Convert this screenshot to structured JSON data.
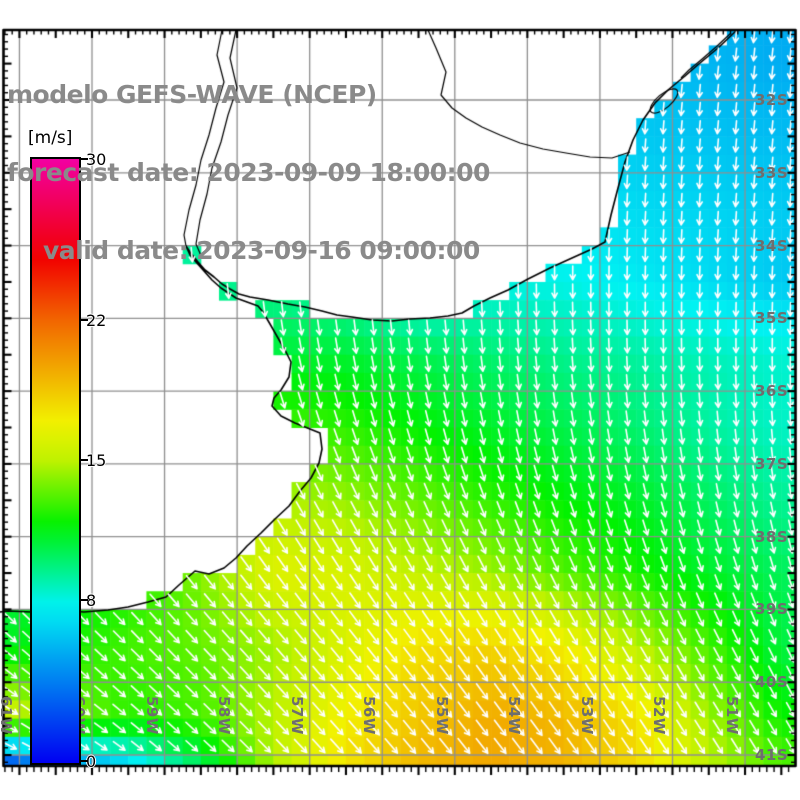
{
  "title": {
    "line1": "modelo GEFS-WAVE (NCEP)",
    "line2": "forecast date: 2023-09-09 18:00:00",
    "line3": "valid date: 2023-09-16 09:00:00",
    "color": "#8a8a8a"
  },
  "colorbar": {
    "unit_label": "[m/s]",
    "tick_labels": [
      "30",
      "22",
      "15",
      "8",
      "0"
    ],
    "tick_values": [
      30,
      22,
      15,
      8,
      0
    ],
    "min": 0,
    "max": 30,
    "hue_anchors": [
      [
        0,
        240
      ],
      [
        8,
        178
      ],
      [
        15,
        73
      ],
      [
        22,
        25
      ],
      [
        30,
        -40
      ]
    ]
  },
  "axes": {
    "lat_labels": [
      "32S",
      "33S",
      "34S",
      "35S",
      "36S",
      "37S",
      "38S",
      "39S",
      "40S",
      "41S"
    ],
    "lat_values": [
      -32,
      -33,
      -34,
      -35,
      -36,
      -37,
      -38,
      -39,
      -40,
      -41
    ],
    "lon_labels": [
      "61W",
      "60W",
      "59W",
      "58W",
      "57W",
      "56W",
      "55W",
      "54W",
      "53W",
      "52W",
      "51W"
    ],
    "lon_values": [
      -61,
      -60,
      -59,
      -58,
      -57,
      -56,
      -55,
      -54,
      -53,
      -52,
      -51
    ],
    "label_color": "#6e6e6e",
    "grid_color": "#8f8f8f"
  },
  "map_style": {
    "land_color": "#ffffff",
    "coast_color": "#000000",
    "arrow_color": "#ffffff",
    "frame_color": "#000000"
  },
  "chart_data": {
    "type": "heatmap",
    "variable": "wind speed",
    "units": "m/s",
    "lon_range": [
      -61.3,
      -50.3
    ],
    "lat_range": [
      -41.2,
      -31.0
    ],
    "grid_lons": [
      -61.5,
      -60.5,
      -59.5,
      -58.5,
      -57.5,
      -56.5,
      -55.5,
      -54.5,
      -53.5,
      -52.5,
      -51.5,
      -50.5
    ],
    "grid_lats": [
      -31.5,
      -32.5,
      -33.5,
      -34.5,
      -35.5,
      -36.5,
      -37.5,
      -38.5,
      -39.5,
      -40.5,
      -41.0,
      -41.5
    ],
    "speed_grid": [
      [
        8.0,
        8.0,
        8.0,
        8.0,
        8.0,
        8.0,
        7.5,
        7.0,
        6.5,
        6.2,
        5.8,
        5.5
      ],
      [
        8.5,
        8.5,
        8.5,
        8.5,
        8.5,
        8.0,
        7.5,
        7.2,
        6.8,
        6.4,
        6.2,
        6.0
      ],
      [
        9.0,
        9.0,
        9.0,
        9.0,
        9.0,
        8.5,
        8.0,
        7.6,
        7.3,
        7.0,
        6.8,
        6.5
      ],
      [
        9.0,
        9.0,
        9.2,
        9.5,
        9.2,
        8.5,
        7.2,
        8.0,
        8.0,
        7.5,
        7.0,
        6.4
      ],
      [
        10.0,
        10.0,
        10.2,
        10.5,
        11.0,
        11.0,
        10.5,
        10.0,
        9.5,
        9.2,
        8.8,
        8.4
      ],
      [
        10.5,
        11.0,
        11.5,
        12.3,
        13.0,
        12.6,
        11.8,
        11.2,
        10.6,
        10.0,
        9.2,
        8.6
      ],
      [
        11.0,
        11.5,
        12.0,
        13.5,
        14.8,
        14.3,
        13.5,
        12.6,
        11.8,
        11.2,
        10.2,
        9.4
      ],
      [
        10.5,
        11.0,
        12.0,
        14.0,
        16.3,
        16.0,
        15.2,
        14.5,
        13.2,
        12.2,
        11.2,
        10.4
      ],
      [
        11.0,
        12.0,
        13.0,
        13.5,
        14.5,
        16.0,
        17.5,
        18.0,
        17.0,
        15.0,
        13.0,
        10.8
      ],
      [
        16.5,
        14.5,
        12.5,
        13.0,
        15.0,
        17.0,
        18.5,
        19.5,
        19.0,
        17.5,
        14.5,
        12.0
      ],
      [
        3.0,
        6.0,
        8.0,
        11.0,
        15.0,
        17.5,
        19.0,
        19.6,
        19.2,
        17.8,
        15.0,
        13.0
      ],
      [
        0.5,
        2.0,
        5.0,
        9.5,
        14.0,
        17.0,
        18.8,
        19.5,
        19.2,
        17.8,
        15.0,
        13.2
      ]
    ],
    "direction_to_grid_deg": [
      [
        183,
        183,
        183,
        183,
        183,
        184,
        184,
        185,
        185,
        186,
        186,
        186
      ],
      [
        180,
        180,
        180,
        181,
        181,
        182,
        182,
        183,
        184,
        184,
        185,
        185
      ],
      [
        175,
        176,
        177,
        178,
        179,
        180,
        180,
        181,
        182,
        183,
        184,
        184
      ],
      [
        168,
        170,
        172,
        174,
        176,
        177,
        178,
        179,
        180,
        181,
        182,
        183
      ],
      [
        158,
        160,
        163,
        166,
        168,
        170,
        172,
        174,
        176,
        178,
        179,
        180
      ],
      [
        147,
        150,
        153,
        156,
        159,
        162,
        165,
        168,
        170,
        172,
        174,
        176
      ],
      [
        140,
        142,
        145,
        148,
        150,
        153,
        156,
        159,
        162,
        165,
        168,
        170
      ],
      [
        136,
        138,
        140,
        142,
        144,
        147,
        150,
        152,
        155,
        158,
        160,
        163
      ],
      [
        130,
        133,
        135,
        137,
        139,
        141,
        143,
        146,
        148,
        150,
        152,
        155
      ],
      [
        120,
        125,
        130,
        134,
        137,
        139,
        141,
        143,
        145,
        147,
        148,
        150
      ],
      [
        112,
        118,
        126,
        132,
        136,
        138,
        140,
        142,
        144,
        146,
        147,
        149
      ],
      [
        108,
        115,
        124,
        130,
        135,
        137,
        139,
        141,
        143,
        145,
        146,
        148
      ]
    ]
  }
}
